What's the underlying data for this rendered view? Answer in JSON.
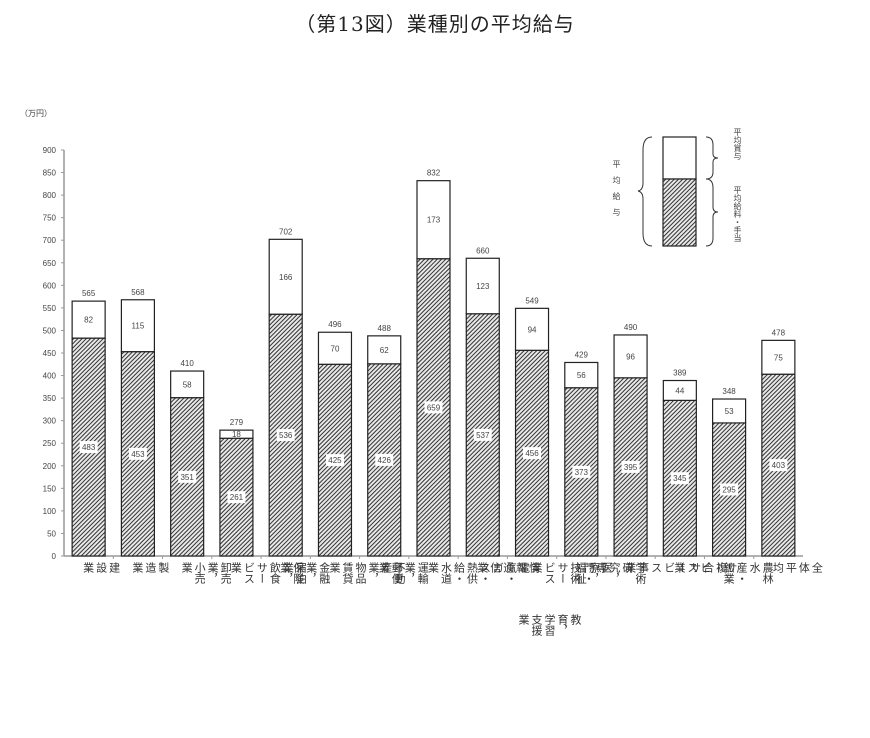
{
  "title": "（第13図）業種別の平均給与",
  "unit": "（万円）",
  "legend": {
    "total": "平均給与",
    "bonus": "平均賞与",
    "salary": "平均給料・手当"
  },
  "chart_data": {
    "type": "bar",
    "stacked": true,
    "title": "（第13図）業種別の平均給与",
    "xlabel": "",
    "ylabel": "（万円）",
    "ylim": [
      0,
      900
    ],
    "yticks": [
      0,
      50,
      100,
      150,
      200,
      250,
      300,
      350,
      400,
      450,
      500,
      550,
      600,
      650,
      700,
      750,
      800,
      850,
      900
    ],
    "grid": false,
    "legend_position": "upper right",
    "categories": [
      "建設業",
      "製造業",
      "卸売業，小売業",
      "宿泊業，飲食サービス業",
      "金融業，保険業",
      "不動産業，物品賃貸業",
      "運輸業，郵便業",
      "電気・ガス・熱供給・水道業",
      "情報通信業",
      "学術研究，専門・技術サービス業 教育，学習支援業",
      "医療，福祉",
      "複合サービス事業",
      "サービス業",
      "農林水産・鉱業",
      "全体平均"
    ],
    "series": [
      {
        "name": "平均給料・手当",
        "pattern": "hatched",
        "values": [
          483,
          453,
          351,
          261,
          536,
          425,
          426,
          659,
          537,
          456,
          373,
          395,
          345,
          295,
          403
        ]
      },
      {
        "name": "平均賞与",
        "pattern": "white",
        "values": [
          82,
          115,
          58,
          18,
          166,
          70,
          62,
          173,
          123,
          94,
          56,
          96,
          44,
          53,
          75
        ]
      }
    ],
    "totals": [
      565,
      568,
      410,
      279,
      702,
      496,
      488,
      832,
      660,
      549,
      429,
      490,
      389,
      348,
      478
    ],
    "total_series_name": "平均給与"
  },
  "x_labels_display": [
    [
      "建設業"
    ],
    [
      "製造業"
    ],
    [
      "卸売業",
      "，小売業"
    ],
    [
      "宿泊業",
      "，飲食サービス業"
    ],
    [
      "金融業",
      "，保険業"
    ],
    [
      "不動産業",
      "，物品賃貸業"
    ],
    [
      "運輸業",
      "，郵便業"
    ],
    [
      "電気・ガス・熱供給・水道業"
    ],
    [
      "情報通信業"
    ],
    [
      "学術研究，専門・技術サービス業",
      "教育，学習支援業"
    ],
    [
      "医療",
      "，福祉"
    ],
    [
      "複合サービス事業"
    ],
    [
      "サービス業"
    ],
    [
      "農林水産・鉱業"
    ],
    [
      "全体平均"
    ]
  ]
}
